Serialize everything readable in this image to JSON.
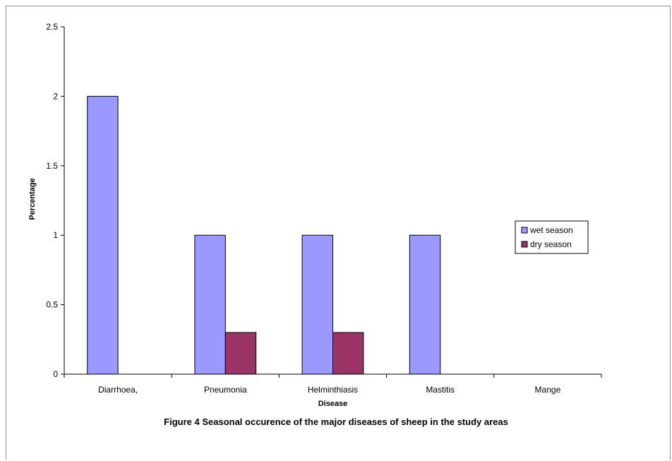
{
  "chart_data": {
    "type": "bar",
    "categories": [
      "Diarrhoea,",
      "Pneumonia",
      "Helminthiasis",
      "Mastitis",
      "Mange"
    ],
    "series": [
      {
        "name": "wet season",
        "values": [
          2,
          1,
          1,
          1,
          0
        ],
        "color": "#9999ff"
      },
      {
        "name": "dry season",
        "values": [
          0,
          0.3,
          0.3,
          0,
          0
        ],
        "color": "#993366"
      }
    ],
    "xlabel": "Disease",
    "ylabel": "Percentage",
    "ylim": [
      0,
      2.5
    ],
    "yticks": [
      "0",
      "0.5",
      "1",
      "1.5",
      "2",
      "2.5"
    ],
    "grid": false,
    "legend_position": "right"
  },
  "caption": "Figure 4 Seasonal occurence of the major diseases of sheep in the study areas"
}
